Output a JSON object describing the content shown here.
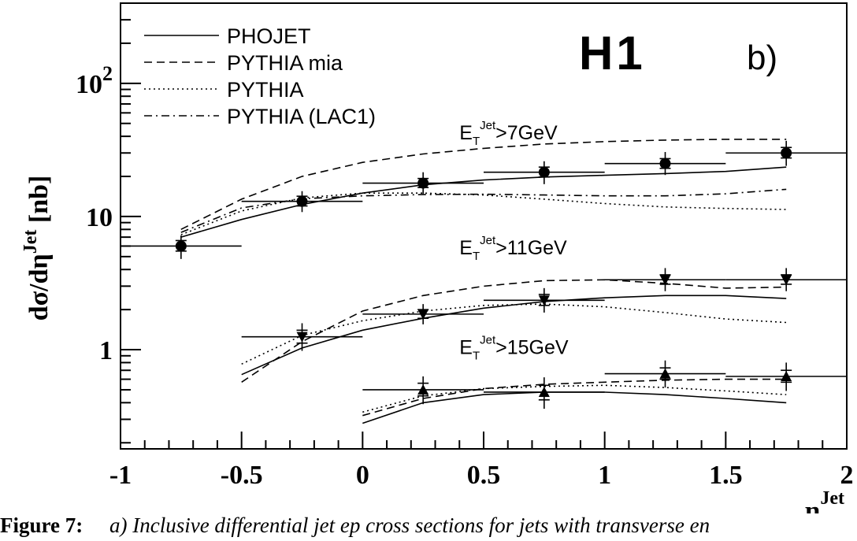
{
  "chart_data": {
    "type": "scatter",
    "panel_label": "b)",
    "experiment_label": "H1",
    "xlabel": "η",
    "xlabel_sup": "Jet",
    "ylabel": "dσ/dη",
    "ylabel_sup": "Jet",
    "ylabel_unit": "[nb]",
    "xlim": [
      -1,
      2
    ],
    "ylim": [
      0.18,
      400
    ],
    "yscale": "log",
    "x_ticks": [
      "-1",
      "-0.5",
      "0",
      "0.5",
      "1",
      "1.5",
      "2"
    ],
    "y_ticks": [
      {
        "label": "1",
        "value": 1
      },
      {
        "label": "10",
        "value": 10
      },
      {
        "label": "10",
        "sup": "2",
        "value": 100
      }
    ],
    "legend": [
      {
        "name": "PHOJET",
        "style": "solid"
      },
      {
        "name": "PYTHIA mia",
        "style": "dashed"
      },
      {
        "name": "PYTHIA",
        "style": "dotted"
      },
      {
        "name": "PYTHIA (LAC1)",
        "style": "dashdot"
      }
    ],
    "datasets": [
      {
        "label_main": "E",
        "label_sub": "T",
        "label_sup": "Jet",
        "label_rest": ">7GeV",
        "label_x": 0.4,
        "label_y": 38,
        "marker": "circle",
        "points": [
          {
            "x": -0.75,
            "xerr": 0.25,
            "y": 6.0,
            "stat": [
              5.5,
              6.6
            ],
            "tot": [
              4.8,
              7.2
            ]
          },
          {
            "x": -0.25,
            "xerr": 0.25,
            "y": 13.0,
            "stat": [
              12.0,
              14.2
            ],
            "tot": [
              10.8,
              15.5
            ]
          },
          {
            "x": 0.25,
            "xerr": 0.25,
            "y": 17.8,
            "stat": [
              16.5,
              19.3
            ],
            "tot": [
              14.8,
              21.5
            ]
          },
          {
            "x": 0.75,
            "xerr": 0.25,
            "y": 21.5,
            "stat": [
              19.8,
              23.5
            ],
            "tot": [
              17.5,
              26.0
            ]
          },
          {
            "x": 1.25,
            "xerr": 0.25,
            "y": 25.0,
            "stat": [
              23.0,
              27.2
            ],
            "tot": [
              20.5,
              30.5
            ]
          },
          {
            "x": 1.75,
            "xerr": 0.25,
            "y": 30.0,
            "stat": [
              27.5,
              33.0
            ],
            "tot": [
              24.0,
              37.0
            ]
          }
        ],
        "curves": {
          "solid": {
            "x": [
              -0.75,
              -0.5,
              -0.25,
              0,
              0.25,
              0.5,
              0.75,
              1.0,
              1.25,
              1.5,
              1.75
            ],
            "y": [
              7.0,
              9.5,
              12.3,
              15.0,
              17.3,
              18.8,
              19.8,
              20.4,
              21.0,
              21.8,
              23.5
            ]
          },
          "dashed": {
            "x": [
              -0.75,
              -0.5,
              -0.25,
              0,
              0.25,
              0.5,
              0.75,
              1.0,
              1.25,
              1.5,
              1.75
            ],
            "y": [
              8.0,
              13.5,
              20.0,
              25.5,
              29.5,
              32.5,
              35.0,
              36.5,
              37.5,
              38.0,
              38.0
            ]
          },
          "dotted": {
            "x": [
              -0.75,
              -0.5,
              -0.25,
              0,
              0.25,
              0.5,
              0.75,
              1.0,
              1.25,
              1.5,
              1.75
            ],
            "y": [
              7.3,
              11.0,
              13.8,
              15.0,
              15.0,
              14.5,
              13.5,
              12.5,
              11.8,
              11.5,
              11.3
            ]
          },
          "dashdot": {
            "x": [
              -0.75,
              -0.5,
              -0.25,
              0,
              0.25,
              0.5,
              0.75,
              1.0,
              1.25,
              1.5,
              1.75
            ],
            "y": [
              7.6,
              11.6,
              13.6,
              14.3,
              14.6,
              14.7,
              14.5,
              14.3,
              14.3,
              14.8,
              16.0
            ]
          }
        }
      },
      {
        "label_main": "E",
        "label_sub": "T",
        "label_sup": "Jet",
        "label_rest": ">11GeV",
        "label_x": 0.4,
        "label_y": 5.2,
        "marker": "triangle-down",
        "points": [
          {
            "x": -0.25,
            "xerr": 0.25,
            "y": 1.25,
            "stat": [
              1.12,
              1.4
            ],
            "tot": [
              0.98,
              1.58
            ]
          },
          {
            "x": 0.25,
            "xerr": 0.25,
            "y": 1.85,
            "stat": [
              1.72,
              2.0
            ],
            "tot": [
              1.55,
              2.2
            ]
          },
          {
            "x": 0.75,
            "xerr": 0.25,
            "y": 2.35,
            "stat": [
              2.15,
              2.6
            ],
            "tot": [
              1.9,
              2.9
            ]
          },
          {
            "x": 1.25,
            "xerr": 0.25,
            "y": 3.35,
            "stat": [
              3.1,
              3.65
            ],
            "tot": [
              2.75,
              4.1
            ]
          },
          {
            "x": 1.75,
            "xerr": 0.25,
            "y": 3.35,
            "stat": [
              3.1,
              3.65
            ],
            "tot": [
              2.75,
              4.1
            ]
          }
        ],
        "curves": {
          "solid": {
            "x": [
              -0.5,
              -0.25,
              0,
              0.25,
              0.5,
              0.75,
              1.0,
              1.25,
              1.5,
              1.75
            ],
            "y": [
              0.65,
              1.03,
              1.4,
              1.72,
              2.05,
              2.3,
              2.45,
              2.55,
              2.55,
              2.42
            ]
          },
          "dashed": {
            "x": [
              -0.5,
              -0.25,
              0,
              0.25,
              0.5,
              0.75,
              1.0,
              1.25,
              1.5,
              1.75
            ],
            "y": [
              0.57,
              1.15,
              1.95,
              2.55,
              3.0,
              3.3,
              3.35,
              3.15,
              2.9,
              2.95
            ]
          },
          "dotted": {
            "x": [
              -0.5,
              -0.25,
              0,
              0.25,
              0.5,
              0.75,
              1.0,
              1.25,
              1.5,
              1.75
            ],
            "y": [
              0.78,
              1.28,
              1.65,
              1.95,
              2.15,
              2.2,
              2.1,
              1.9,
              1.7,
              1.6
            ]
          }
        }
      },
      {
        "label_main": "E",
        "label_sub": "T",
        "label_sup": "Jet",
        "label_rest": ">15GeV",
        "label_x": 0.4,
        "label_y": 0.93,
        "marker": "triangle-up",
        "points": [
          {
            "x": 0.25,
            "xerr": 0.25,
            "y": 0.5,
            "stat": [
              0.45,
              0.56
            ],
            "tot": [
              0.39,
              0.63
            ]
          },
          {
            "x": 0.75,
            "xerr": 0.25,
            "y": 0.48,
            "stat": [
              0.42,
              0.54
            ],
            "tot": [
              0.36,
              0.62
            ]
          },
          {
            "x": 1.25,
            "xerr": 0.25,
            "y": 0.66,
            "stat": [
              0.6,
              0.73
            ],
            "tot": [
              0.52,
              0.83
            ]
          },
          {
            "x": 1.75,
            "xerr": 0.25,
            "y": 0.63,
            "stat": [
              0.57,
              0.7
            ],
            "tot": [
              0.49,
              0.8
            ]
          }
        ],
        "curves": {
          "solid": {
            "x": [
              0,
              0.25,
              0.5,
              0.75,
              1.0,
              1.25,
              1.5,
              1.75
            ],
            "y": [
              0.28,
              0.4,
              0.46,
              0.48,
              0.48,
              0.46,
              0.43,
              0.4
            ]
          },
          "dashed": {
            "x": [
              0,
              0.25,
              0.5,
              0.75,
              1.0,
              1.25,
              1.5,
              1.75
            ],
            "y": [
              0.32,
              0.43,
              0.51,
              0.55,
              0.57,
              0.59,
              0.6,
              0.6
            ]
          },
          "dotted": {
            "x": [
              0,
              0.25,
              0.5,
              0.75,
              1.0,
              1.25,
              1.5,
              1.75
            ],
            "y": [
              0.34,
              0.45,
              0.51,
              0.53,
              0.54,
              0.52,
              0.49,
              0.46
            ]
          }
        }
      }
    ]
  },
  "caption": {
    "label": "Figure 7:",
    "text": "a) Inclusive differential jet ep cross sections for jets with transverse en"
  }
}
